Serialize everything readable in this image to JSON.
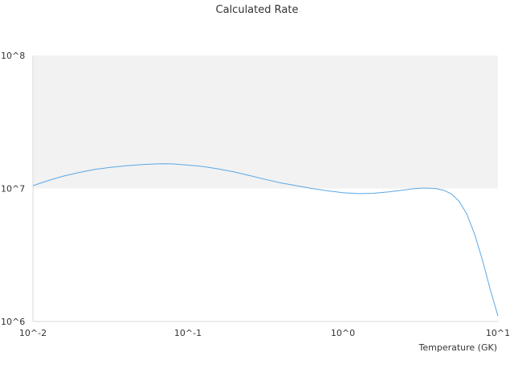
{
  "chart_data": {
    "type": "line",
    "title": "Calculated Rate",
    "xlabel": "Temperature (GK)",
    "ylabel": "",
    "x_scale": "log",
    "y_scale": "log",
    "xlim": [
      0.01,
      10
    ],
    "ylim": [
      1000000,
      100000000
    ],
    "x_ticks": [
      {
        "value": 0.01,
        "label": "10^-2"
      },
      {
        "value": 0.1,
        "label": "10^-1"
      },
      {
        "value": 1,
        "label": "10^0"
      },
      {
        "value": 10,
        "label": "10^1"
      }
    ],
    "y_ticks": [
      {
        "value": 1000000,
        "label": "10^6"
      },
      {
        "value": 10000000,
        "label": "10^7"
      },
      {
        "value": 100000000,
        "label": "10^8"
      }
    ],
    "grid": false,
    "legend": "none",
    "colors": {
      "line": "#5aa7e6",
      "band": "#f2f2f2",
      "axis": "#d9d9d9"
    },
    "shaded_band": {
      "y_from": 10000000,
      "y_to": 100000000
    },
    "series": [
      {
        "x": [
          0.01,
          0.0126,
          0.0158,
          0.0178,
          0.02,
          0.0251,
          0.0316,
          0.0398,
          0.05,
          0.0631,
          0.0708,
          0.0794,
          0.1,
          0.126,
          0.158,
          0.2,
          0.251,
          0.316,
          0.398,
          0.501,
          0.631,
          0.794,
          1.0,
          1.26,
          1.58,
          2.0,
          2.51,
          2.82,
          3.16,
          3.55,
          3.98,
          4.47,
          5.01,
          5.62,
          6.31,
          7.08,
          7.94,
          8.91,
          10.0
        ],
        "y": [
          10500000,
          11500000,
          12400000,
          12800000,
          13200000,
          13900000,
          14400000,
          14800000,
          15100000,
          15300000,
          15350000,
          15300000,
          15000000,
          14600000,
          14000000,
          13300000,
          12500000,
          11700000,
          11000000,
          10500000,
          10000000,
          9600000,
          9300000,
          9150000,
          9200000,
          9450000,
          9750000,
          9950000,
          10050000,
          10050000,
          9980000,
          9700000,
          9100000,
          8000000,
          6400000,
          4500000,
          2900000,
          1750000,
          1100000
        ]
      }
    ]
  }
}
